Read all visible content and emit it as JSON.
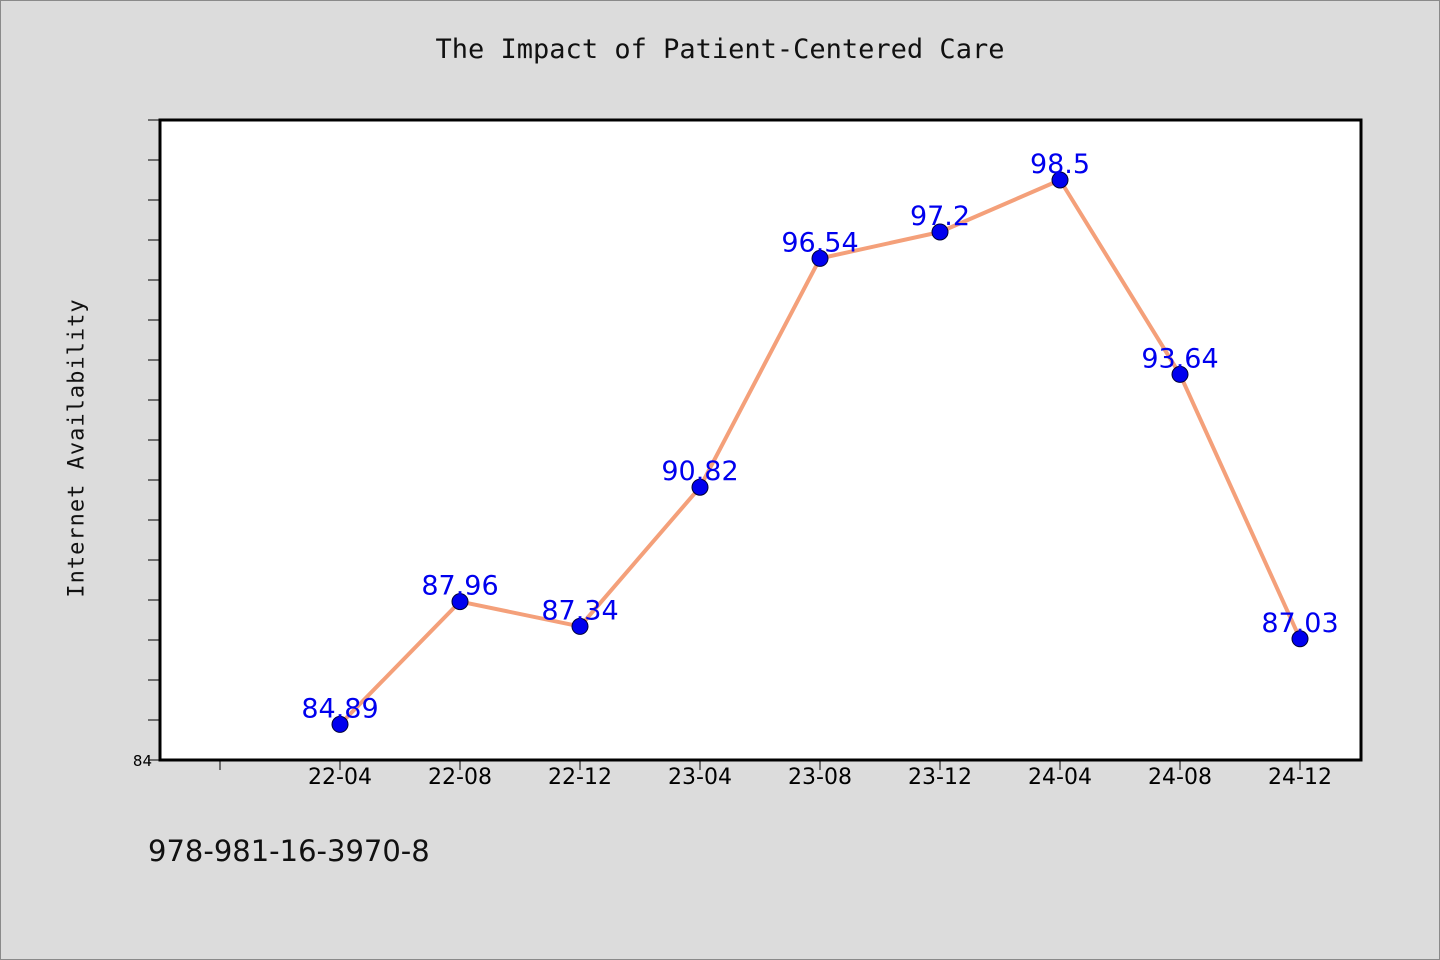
{
  "chart_data": {
    "type": "line",
    "title": "The Impact of Patient-Centered Care",
    "xlabel": "",
    "ylabel": "Internet Availability",
    "categories": [
      "22-04",
      "22-08",
      "22-12",
      "23-04",
      "23-08",
      "23-12",
      "24-04",
      "24-08",
      "24-12"
    ],
    "series": [
      {
        "values": [
          84.89,
          87.96,
          87.34,
          90.82,
          96.54,
          97.2,
          98.5,
          93.64,
          87.03
        ]
      }
    ],
    "y_tick_labels": [
      "84"
    ],
    "ylim": [
      84,
      100
    ],
    "grid": false,
    "line_color": "#f4a07a",
    "marker_color": "#0000ee",
    "label_color": "#0000ee"
  },
  "footer": {
    "isbn": "978-981-16-3970-8"
  }
}
